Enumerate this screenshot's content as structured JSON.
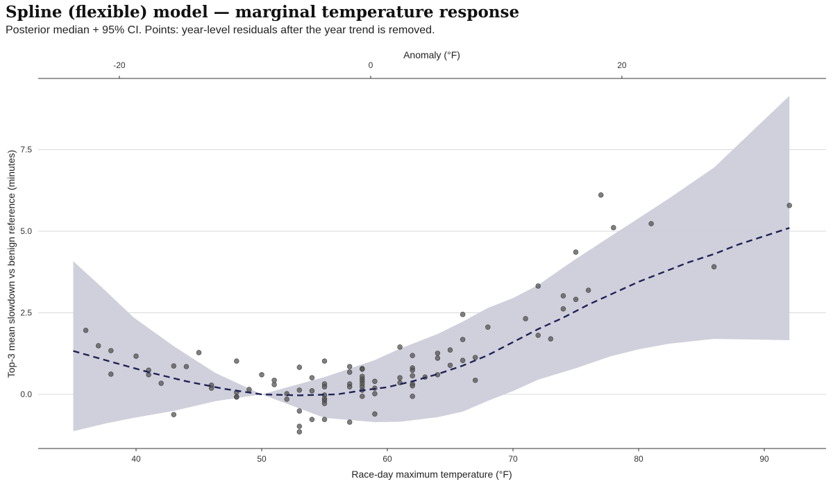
{
  "title": "Spline (flexible) model — marginal temperature response",
  "subtitle": "Posterior median + 95% CI. Points: year-level residuals after the year trend is removed.",
  "chart_data": {
    "type": "line",
    "xlabel": "Race-day maximum temperature (°F)",
    "ylabel": "Top-3 mean slowdown vs benign reference (minutes)",
    "top_xlabel": "Anomaly (°F)",
    "xlim": [
      33,
      96
    ],
    "ylim": [
      -1.65,
      9.65
    ],
    "x_ticks": [
      40,
      50,
      60,
      70,
      80,
      90
    ],
    "y_ticks": [
      0.0,
      2.5,
      5.0,
      7.5
    ],
    "y_tick_labels": [
      "0.0",
      "2.5",
      "5.0",
      "7.5"
    ],
    "top_x_ticks": [
      -20,
      0,
      20
    ],
    "grid": "horizontal",
    "colors": {
      "band": "#cdcdda",
      "median": "#1f2257",
      "points": "#555555"
    },
    "median": {
      "x": [
        35,
        38,
        41,
        44,
        47,
        50,
        53,
        56,
        58,
        60,
        62,
        64,
        66,
        68,
        70,
        72,
        74,
        76,
        78,
        80,
        82,
        84,
        86,
        88,
        90,
        92
      ],
      "y": [
        1.33,
        1.0,
        0.68,
        0.4,
        0.17,
        0,
        -0.03,
        0,
        0.12,
        0.22,
        0.4,
        0.62,
        0.88,
        1.2,
        1.6,
        2.0,
        2.35,
        2.75,
        3.1,
        3.45,
        3.75,
        4.05,
        4.3,
        4.6,
        4.85,
        5.1
      ]
    },
    "ci95": {
      "x": [
        35,
        37.5,
        39.8,
        43.1,
        46.3,
        50,
        55,
        59,
        61,
        64,
        66,
        68,
        70,
        72,
        75,
        77.8,
        80,
        82.4,
        86,
        89,
        92
      ],
      "lower": [
        -1.13,
        -0.9,
        -0.72,
        -0.5,
        -0.21,
        0,
        -0.72,
        -0.85,
        -0.84,
        -0.7,
        -0.53,
        -0.2,
        0.1,
        0.45,
        0.8,
        1.17,
        1.38,
        1.55,
        1.7,
        1.68,
        1.66
      ],
      "upper": [
        4.08,
        3.2,
        2.36,
        1.45,
        0.66,
        0,
        0.53,
        1.05,
        1.4,
        1.85,
        2.23,
        2.65,
        2.95,
        3.35,
        4.15,
        4.85,
        5.4,
        6.0,
        6.95,
        8.05,
        9.15
      ]
    },
    "points": {
      "x": [
        36,
        37,
        38,
        38,
        40,
        41,
        41,
        42,
        43,
        43,
        44,
        45,
        46,
        46,
        48,
        48,
        48,
        48,
        49,
        50,
        51,
        51,
        52,
        52,
        53,
        53,
        53,
        53,
        53,
        54,
        54,
        54,
        55,
        55,
        55,
        55,
        55,
        55,
        55,
        55,
        57,
        57,
        57,
        57,
        57,
        58,
        58,
        58,
        58,
        58,
        58,
        58,
        58,
        58,
        59,
        59,
        59,
        59,
        61,
        61,
        61,
        62,
        62,
        62,
        62,
        62,
        62,
        62,
        63,
        64,
        64,
        64,
        65,
        65,
        66,
        66,
        66,
        67,
        67,
        68,
        71,
        72,
        72,
        73,
        74,
        74,
        75,
        75,
        76,
        77,
        78,
        81,
        86,
        92
      ],
      "y": [
        1.96,
        1.49,
        1.34,
        0.62,
        1.17,
        0.74,
        0.6,
        0.34,
        0.87,
        -0.62,
        0.85,
        1.28,
        0.28,
        0.19,
        1.02,
        0.06,
        -0.08,
        -0.08,
        0.15,
        0.6,
        0.43,
        0.3,
        0.02,
        -0.15,
        0.83,
        0.13,
        -0.51,
        -0.98,
        -1.15,
        0.51,
        0.11,
        -0.77,
        1.02,
        0.32,
        0.23,
        -0.02,
        -0.13,
        -0.19,
        -0.28,
        -0.77,
        0.85,
        0.68,
        0.32,
        0.23,
        -0.85,
        0.79,
        0.77,
        0.55,
        0.47,
        0.4,
        0.32,
        0.23,
        0.13,
        -0.06,
        0.4,
        0.19,
        0.02,
        -0.6,
        1.45,
        0.51,
        0.36,
        1.19,
        0.81,
        0.74,
        0.57,
        0.32,
        0.26,
        -0.06,
        0.53,
        1.26,
        1.11,
        0.6,
        1.36,
        0.89,
        2.45,
        1.68,
        1.04,
        1.13,
        0.43,
        2.06,
        2.32,
        3.32,
        1.81,
        1.7,
        3.02,
        2.62,
        4.36,
        2.91,
        3.19,
        6.11,
        5.11,
        5.23,
        3.91,
        5.79
      ]
    }
  }
}
